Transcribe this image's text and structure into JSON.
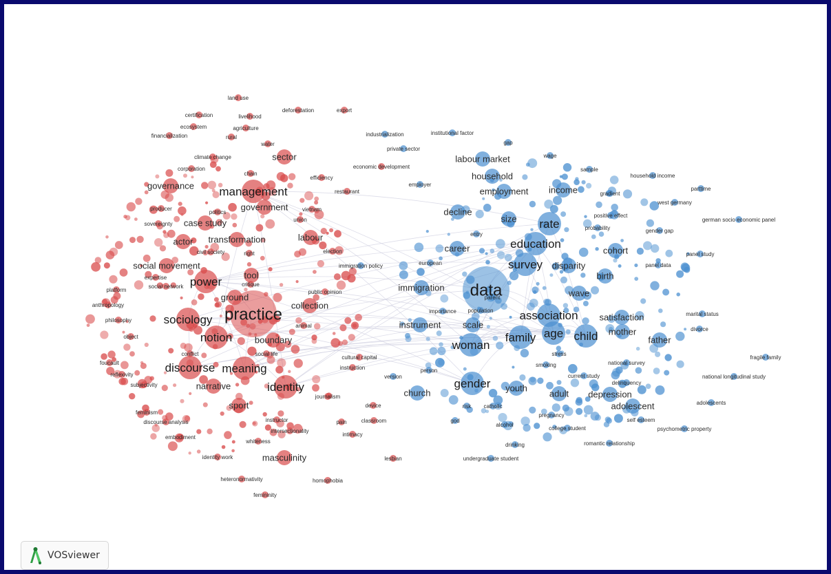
{
  "app": {
    "name": "VOSviewer"
  },
  "colors": {
    "cluster_red": "#d94c4c",
    "cluster_blue": "#4a8fd0",
    "frame": "#0a0a6e",
    "edge": "#cfcfe0"
  },
  "map": {
    "clusters": [
      {
        "id": "red",
        "color": "#d94c4c"
      },
      {
        "id": "blue",
        "color": "#4a8fd0"
      }
    ],
    "terms": [
      [
        "data",
        "blue",
        3
      ],
      [
        "survey",
        "blue",
        2
      ],
      [
        "woman",
        "blue",
        2
      ],
      [
        "education",
        "blue",
        2
      ],
      [
        "association",
        "blue",
        2
      ],
      [
        "family",
        "blue",
        2
      ],
      [
        "child",
        "blue",
        2
      ],
      [
        "age",
        "blue",
        2
      ],
      [
        "gender",
        "blue",
        2
      ],
      [
        "rate",
        "blue",
        2
      ],
      [
        "household",
        "blue",
        1
      ],
      [
        "employment",
        "blue",
        1
      ],
      [
        "income",
        "blue",
        1
      ],
      [
        "mother",
        "blue",
        1
      ],
      [
        "youth",
        "blue",
        1
      ],
      [
        "adult",
        "blue",
        1
      ],
      [
        "adolescent",
        "blue",
        1
      ],
      [
        "scale",
        "blue",
        1
      ],
      [
        "immigration",
        "blue",
        1
      ],
      [
        "size",
        "blue",
        1
      ],
      [
        "labour market",
        "blue",
        1
      ],
      [
        "decline",
        "blue",
        1
      ],
      [
        "satisfaction",
        "blue",
        1
      ],
      [
        "disparity",
        "blue",
        1
      ],
      [
        "career",
        "blue",
        1
      ],
      [
        "church",
        "blue",
        1
      ],
      [
        "depression",
        "blue",
        1
      ],
      [
        "birth",
        "blue",
        1
      ],
      [
        "cohort",
        "blue",
        1
      ],
      [
        "wave",
        "blue",
        1
      ],
      [
        "father",
        "blue",
        1
      ],
      [
        "instrument",
        "blue",
        1
      ],
      [
        "national survey",
        "blue",
        0
      ],
      [
        "panel study",
        "blue",
        0
      ],
      [
        "panel data",
        "blue",
        0
      ],
      [
        "marital status",
        "blue",
        0
      ],
      [
        "divorce",
        "blue",
        0
      ],
      [
        "fragile family",
        "blue",
        0
      ],
      [
        "national longitudinal study",
        "blue",
        0
      ],
      [
        "adolescents",
        "blue",
        0
      ],
      [
        "psychometric property",
        "blue",
        0
      ],
      [
        "self esteem",
        "blue",
        0
      ],
      [
        "college student",
        "blue",
        0
      ],
      [
        "romantic relationship",
        "blue",
        0
      ],
      [
        "undergraduate student",
        "blue",
        0
      ],
      [
        "drinking",
        "blue",
        0
      ],
      [
        "alcohol",
        "blue",
        0
      ],
      [
        "german socio economic panel",
        "blue",
        0
      ],
      [
        "west germany",
        "blue",
        0
      ],
      [
        "household income",
        "blue",
        0
      ],
      [
        "parttime",
        "blue",
        0
      ],
      [
        "gradient",
        "blue",
        0
      ],
      [
        "probability",
        "blue",
        0
      ],
      [
        "positive effect",
        "blue",
        0
      ],
      [
        "gender gap",
        "blue",
        0
      ],
      [
        "employer",
        "blue",
        0
      ],
      [
        "private sector",
        "blue",
        0
      ],
      [
        "wage",
        "blue",
        0
      ],
      [
        "sample",
        "blue",
        0
      ],
      [
        "current study",
        "blue",
        0
      ],
      [
        "delinquency",
        "blue",
        0
      ],
      [
        "pregnancy",
        "blue",
        0
      ],
      [
        "smoking",
        "blue",
        0
      ],
      [
        "stress",
        "blue",
        0
      ],
      [
        "catholic",
        "blue",
        0
      ],
      [
        "version",
        "blue",
        0
      ],
      [
        "person",
        "blue",
        0
      ],
      [
        "god",
        "blue",
        0
      ],
      [
        "risk",
        "blue",
        0
      ],
      [
        "entry",
        "blue",
        0
      ],
      [
        "european",
        "blue",
        0
      ],
      [
        "immigration policy",
        "blue",
        0
      ],
      [
        "importance",
        "blue",
        0
      ],
      [
        "population",
        "blue",
        0
      ],
      [
        "parent",
        "blue",
        0
      ],
      [
        "industrialization",
        "blue",
        0
      ],
      [
        "institutional factor",
        "blue",
        0
      ],
      [
        "gap",
        "blue",
        0
      ],
      [
        "practice",
        "red",
        3
      ],
      [
        "identity",
        "red",
        2
      ],
      [
        "sociology",
        "red",
        2
      ],
      [
        "discourse",
        "red",
        2
      ],
      [
        "notion",
        "red",
        2
      ],
      [
        "power",
        "red",
        2
      ],
      [
        "meaning",
        "red",
        2
      ],
      [
        "management",
        "red",
        2
      ],
      [
        "government",
        "red",
        1
      ],
      [
        "case study",
        "red",
        1
      ],
      [
        "actor",
        "red",
        1
      ],
      [
        "transformation",
        "red",
        1
      ],
      [
        "narrative",
        "red",
        1
      ],
      [
        "tool",
        "red",
        1
      ],
      [
        "governance",
        "red",
        1
      ],
      [
        "masculinity",
        "red",
        1
      ],
      [
        "boundary",
        "red",
        1
      ],
      [
        "labour",
        "red",
        1
      ],
      [
        "sector",
        "red",
        1
      ],
      [
        "social movement",
        "red",
        1
      ],
      [
        "collection",
        "red",
        1
      ],
      [
        "ground",
        "red",
        1
      ],
      [
        "sport",
        "red",
        1
      ],
      [
        "critique",
        "red",
        0
      ],
      [
        "agriculture",
        "red",
        0
      ],
      [
        "livelihood",
        "red",
        0
      ],
      [
        "climate change",
        "red",
        0
      ],
      [
        "corporation",
        "red",
        0
      ],
      [
        "producer",
        "red",
        0
      ],
      [
        "sovereignty",
        "red",
        0
      ],
      [
        "embodiment",
        "red",
        0
      ],
      [
        "discourse analysis",
        "red",
        0
      ],
      [
        "foucault",
        "red",
        0
      ],
      [
        "reflexivity",
        "red",
        0
      ],
      [
        "subjectivity",
        "red",
        0
      ],
      [
        "philosophy",
        "red",
        0
      ],
      [
        "object",
        "red",
        0
      ],
      [
        "platform",
        "red",
        0
      ],
      [
        "anthropology",
        "red",
        0
      ],
      [
        "expertise",
        "red",
        0
      ],
      [
        "identity work",
        "red",
        0
      ],
      [
        "whiteness",
        "red",
        0
      ],
      [
        "intersectionality",
        "red",
        0
      ],
      [
        "instructor",
        "red",
        0
      ],
      [
        "classroom",
        "red",
        0
      ],
      [
        "heteronormativity",
        "red",
        0
      ],
      [
        "femininity",
        "red",
        0
      ],
      [
        "homophobia",
        "red",
        0
      ],
      [
        "lesbian",
        "red",
        0
      ],
      [
        "economic development",
        "red",
        0
      ],
      [
        "efficiency",
        "red",
        0
      ],
      [
        "export",
        "red",
        0
      ],
      [
        "land use",
        "red",
        0
      ],
      [
        "certification",
        "red",
        0
      ],
      [
        "ecosystem",
        "red",
        0
      ],
      [
        "financialization",
        "red",
        0
      ],
      [
        "deforestation",
        "red",
        0
      ],
      [
        "chain",
        "red",
        0
      ],
      [
        "water",
        "red",
        0
      ],
      [
        "restaurant",
        "red",
        0
      ],
      [
        "vietnam",
        "red",
        0
      ],
      [
        "election",
        "red",
        0
      ],
      [
        "public opinion",
        "red",
        0
      ],
      [
        "animal",
        "red",
        0
      ],
      [
        "social life",
        "red",
        0
      ],
      [
        "cultural capital",
        "red",
        0
      ],
      [
        "instruction",
        "red",
        0
      ],
      [
        "device",
        "red",
        0
      ],
      [
        "pain",
        "red",
        0
      ],
      [
        "intimacy",
        "red",
        0
      ],
      [
        "journalism",
        "red",
        0
      ],
      [
        "social network",
        "red",
        0
      ],
      [
        "feminism",
        "red",
        0
      ],
      [
        "conflict",
        "red",
        0
      ],
      [
        "civil society",
        "red",
        0
      ],
      [
        "rural",
        "red",
        0
      ],
      [
        "right",
        "red",
        0
      ],
      [
        "politics",
        "red",
        0
      ],
      [
        "union",
        "red",
        0
      ]
    ]
  }
}
